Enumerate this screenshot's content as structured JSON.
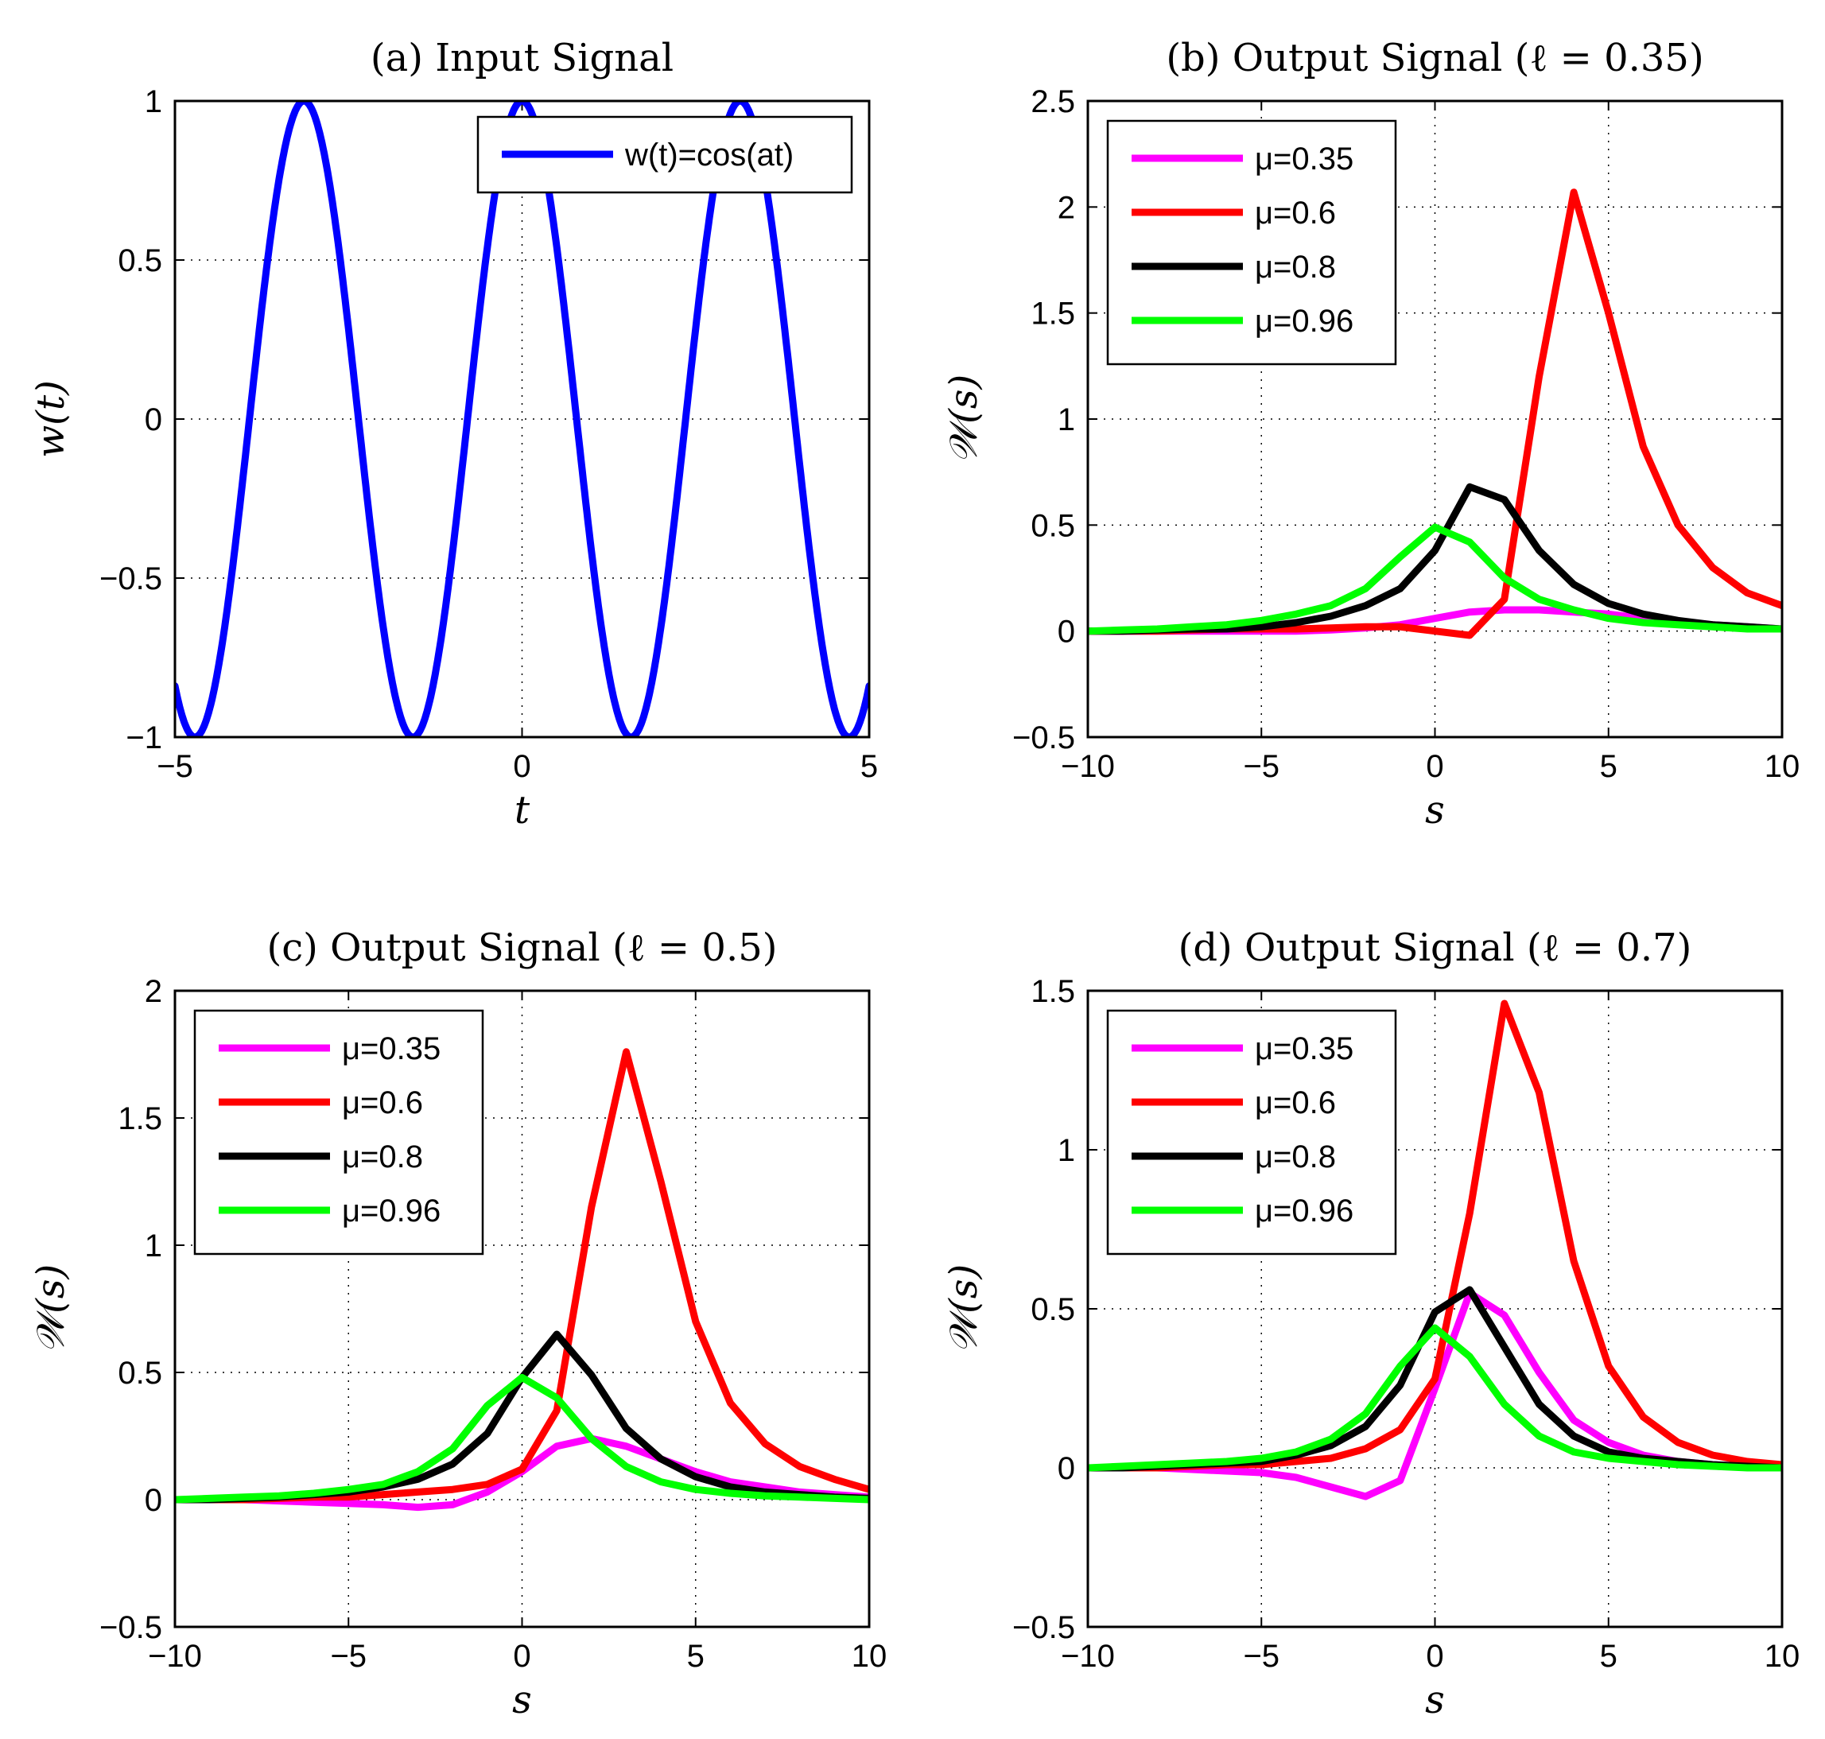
{
  "chart_data": [
    {
      "type": "line",
      "title": "(a) Input Signal",
      "xlabel": "t",
      "ylabel": "w(t)",
      "xlim": [
        -5,
        5
      ],
      "ylim": [
        -1,
        1
      ],
      "xticks": [
        -5,
        0,
        5
      ],
      "yticks": [
        -1,
        -0.5,
        0,
        0.5,
        1
      ],
      "xtick_labels": [
        "−5",
        "0",
        "5"
      ],
      "ytick_labels": [
        "−1",
        "−0.5",
        "0",
        "0.5",
        "1"
      ],
      "grid": true,
      "legend": "top-right",
      "function": {
        "kind": "cosine",
        "a": 2,
        "x_min": -5,
        "x_max": 5
      },
      "series": [
        {
          "name": "w(t)=cos(at)",
          "color": "#0000ff",
          "x": [],
          "y": []
        }
      ]
    },
    {
      "type": "line",
      "title": "(b) Output Signal (ℓ = 0.35)",
      "xlabel": "s",
      "ylabel": "𝒲(s)",
      "xlim": [
        -10,
        10
      ],
      "ylim": [
        -0.5,
        2.5
      ],
      "xticks": [
        -10,
        -5,
        0,
        5,
        10
      ],
      "yticks": [
        -0.5,
        0,
        0.5,
        1,
        1.5,
        2,
        2.5
      ],
      "xtick_labels": [
        "−10",
        "−5",
        "0",
        "5",
        "10"
      ],
      "ytick_labels": [
        "−0.5",
        "0",
        "0.5",
        "1",
        "1.5",
        "2",
        "2.5"
      ],
      "grid": true,
      "legend": "top-left",
      "x": [
        -10,
        -9,
        -8,
        -7,
        -6,
        -5,
        -4,
        -3,
        -2,
        -1,
        0,
        1,
        2,
        3,
        4,
        5,
        6,
        7,
        8,
        9,
        10
      ],
      "series": [
        {
          "name": "μ=0.35",
          "color": "#ff00ff",
          "y": [
            0,
            0,
            0,
            0,
            0,
            0,
            0,
            0.005,
            0.015,
            0.03,
            0.06,
            0.09,
            0.1,
            0.1,
            0.09,
            0.08,
            0.06,
            0.04,
            0.03,
            0.02,
            0.01
          ]
        },
        {
          "name": "μ=0.6",
          "color": "#ff0000",
          "y": [
            0,
            0,
            0,
            0.005,
            0.01,
            0.01,
            0.01,
            0.015,
            0.02,
            0.02,
            0,
            -0.02,
            0.15,
            1.2,
            2.07,
            1.5,
            0.87,
            0.5,
            0.3,
            0.18,
            0.12
          ]
        },
        {
          "name": "μ=0.8",
          "color": "#000000",
          "y": [
            0,
            0,
            0.005,
            0.01,
            0.01,
            0.02,
            0.04,
            0.07,
            0.12,
            0.2,
            0.38,
            0.68,
            0.62,
            0.38,
            0.22,
            0.13,
            0.08,
            0.05,
            0.03,
            0.02,
            0.01
          ]
        },
        {
          "name": "μ=0.96",
          "color": "#00ff00",
          "y": [
            0,
            0.005,
            0.01,
            0.02,
            0.03,
            0.05,
            0.08,
            0.12,
            0.2,
            0.35,
            0.49,
            0.42,
            0.25,
            0.15,
            0.1,
            0.06,
            0.04,
            0.03,
            0.02,
            0.01,
            0.01
          ]
        }
      ]
    },
    {
      "type": "line",
      "title": "(c) Output Signal (ℓ = 0.5)",
      "xlabel": "s",
      "ylabel": "𝒲(s)",
      "xlim": [
        -10,
        10
      ],
      "ylim": [
        -0.5,
        2
      ],
      "xticks": [
        -10,
        -5,
        0,
        5,
        10
      ],
      "yticks": [
        -0.5,
        0,
        0.5,
        1,
        1.5,
        2
      ],
      "xtick_labels": [
        "−10",
        "−5",
        "0",
        "5",
        "10"
      ],
      "ytick_labels": [
        "−0.5",
        "0",
        "0.5",
        "1",
        "1.5",
        "2"
      ],
      "grid": true,
      "legend": "top-left",
      "x": [
        -10,
        -9,
        -8,
        -7,
        -6,
        -5,
        -4,
        -3,
        -2,
        -1,
        0,
        1,
        2,
        3,
        4,
        5,
        6,
        7,
        8,
        9,
        10
      ],
      "series": [
        {
          "name": "μ=0.35",
          "color": "#ff00ff",
          "y": [
            0,
            0,
            0,
            -0.005,
            -0.01,
            -0.015,
            -0.02,
            -0.03,
            -0.02,
            0.03,
            0.11,
            0.21,
            0.24,
            0.21,
            0.16,
            0.11,
            0.07,
            0.05,
            0.03,
            0.02,
            0.01
          ]
        },
        {
          "name": "μ=0.6",
          "color": "#ff0000",
          "y": [
            0,
            0,
            0,
            0.005,
            0.01,
            0.01,
            0.02,
            0.03,
            0.04,
            0.06,
            0.12,
            0.35,
            1.15,
            1.76,
            1.25,
            0.7,
            0.38,
            0.22,
            0.13,
            0.08,
            0.04
          ]
        },
        {
          "name": "μ=0.8",
          "color": "#000000",
          "y": [
            0,
            0,
            0.005,
            0.01,
            0.02,
            0.03,
            0.05,
            0.08,
            0.14,
            0.26,
            0.48,
            0.65,
            0.49,
            0.28,
            0.16,
            0.09,
            0.05,
            0.03,
            0.02,
            0.01,
            0.005
          ]
        },
        {
          "name": "μ=0.96",
          "color": "#00ff00",
          "y": [
            0,
            0.005,
            0.01,
            0.015,
            0.025,
            0.04,
            0.06,
            0.11,
            0.2,
            0.37,
            0.48,
            0.4,
            0.24,
            0.13,
            0.07,
            0.04,
            0.025,
            0.015,
            0.01,
            0.005,
            0
          ]
        }
      ]
    },
    {
      "type": "line",
      "title": "(d) Output Signal (ℓ = 0.7)",
      "xlabel": "s",
      "ylabel": "𝒲(s)",
      "xlim": [
        -10,
        10
      ],
      "ylim": [
        -0.5,
        1.5
      ],
      "xticks": [
        -10,
        -5,
        0,
        5,
        10
      ],
      "yticks": [
        -0.5,
        0,
        0.5,
        1,
        1.5
      ],
      "xtick_labels": [
        "−10",
        "−5",
        "0",
        "5",
        "10"
      ],
      "ytick_labels": [
        "−0.5",
        "0",
        "0.5",
        "1",
        "1.5"
      ],
      "grid": true,
      "legend": "top-left",
      "x": [
        -10,
        -9,
        -8,
        -7,
        -6,
        -5,
        -4,
        -3,
        -2,
        -1,
        0,
        1,
        2,
        3,
        4,
        5,
        6,
        7,
        8,
        9,
        10
      ],
      "series": [
        {
          "name": "μ=0.35",
          "color": "#ff00ff",
          "y": [
            0,
            0,
            0,
            -0.005,
            -0.01,
            -0.015,
            -0.03,
            -0.06,
            -0.09,
            -0.04,
            0.25,
            0.55,
            0.48,
            0.3,
            0.15,
            0.08,
            0.04,
            0.02,
            0.01,
            0.005,
            0
          ]
        },
        {
          "name": "μ=0.6",
          "color": "#ff0000",
          "y": [
            0,
            0,
            0,
            0.005,
            0.01,
            0.01,
            0.02,
            0.03,
            0.06,
            0.12,
            0.28,
            0.8,
            1.46,
            1.18,
            0.65,
            0.32,
            0.16,
            0.08,
            0.04,
            0.02,
            0.01
          ]
        },
        {
          "name": "μ=0.8",
          "color": "#000000",
          "y": [
            0,
            0,
            0.005,
            0.01,
            0.015,
            0.02,
            0.04,
            0.07,
            0.13,
            0.26,
            0.49,
            0.56,
            0.38,
            0.2,
            0.1,
            0.05,
            0.03,
            0.02,
            0.01,
            0.005,
            0
          ]
        },
        {
          "name": "μ=0.96",
          "color": "#00ff00",
          "y": [
            0,
            0.005,
            0.01,
            0.015,
            0.02,
            0.03,
            0.05,
            0.09,
            0.17,
            0.32,
            0.44,
            0.35,
            0.2,
            0.1,
            0.05,
            0.03,
            0.02,
            0.01,
            0.005,
            0,
            0
          ]
        }
      ]
    }
  ]
}
